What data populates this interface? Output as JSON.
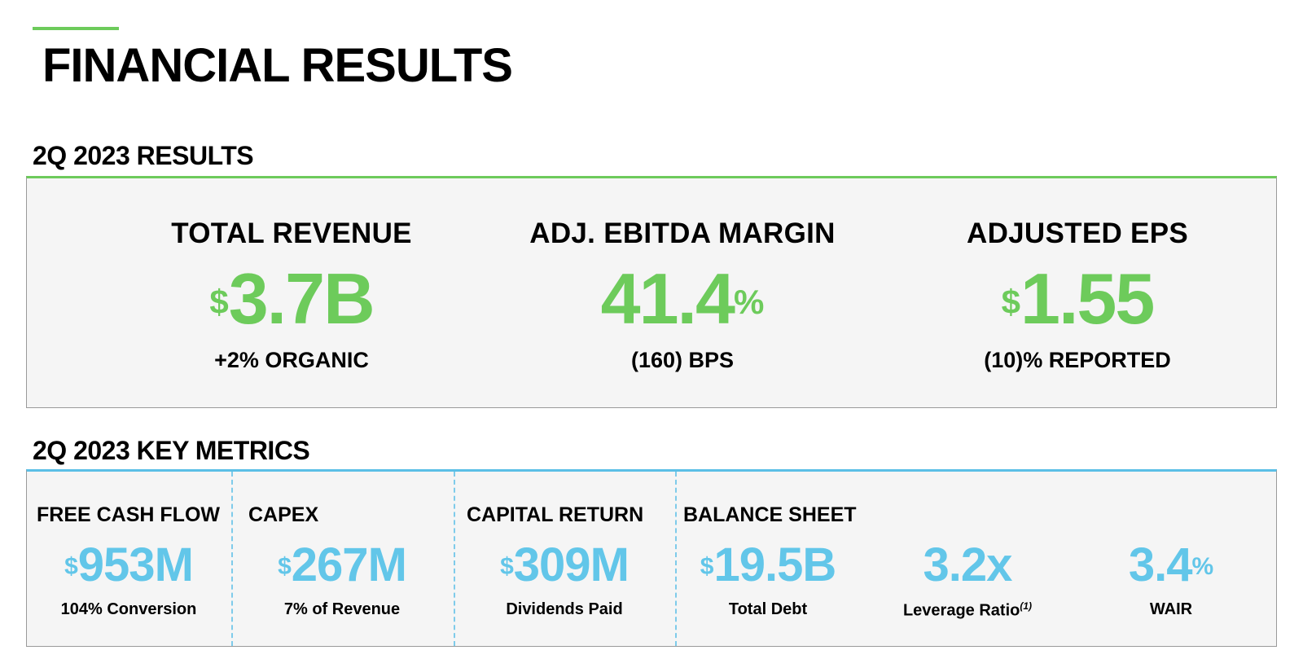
{
  "page_title": "FINANCIAL RESULTS",
  "accent_color": "#6dcb5b",
  "metrics_color": "#62c6e9",
  "results": {
    "title": "2Q 2023 RESULTS",
    "items": [
      {
        "label": "TOTAL REVENUE",
        "prefix": "$",
        "value": "3.7B",
        "suffix": "",
        "sub": "+2% ORGANIC"
      },
      {
        "label": "ADJ. EBITDA MARGIN",
        "prefix": "",
        "value": "41.4",
        "suffix": "%",
        "sub": "(160) BPS"
      },
      {
        "label": "ADJUSTED EPS",
        "prefix": "$",
        "value": "1.55",
        "suffix": "",
        "sub": "(10)% REPORTED"
      }
    ]
  },
  "metrics": {
    "title": "2Q 2023 KEY METRICS",
    "free_cash_flow": {
      "label": "FREE CASH FLOW",
      "prefix": "$",
      "value": "953M",
      "sub": "104% Conversion"
    },
    "capex": {
      "label": "CAPEX",
      "prefix": "$",
      "value": "267M",
      "sub": "7% of Revenue"
    },
    "capital_return": {
      "label": "CAPITAL RETURN",
      "prefix": "$",
      "value": "309M",
      "sub": "Dividends Paid"
    },
    "balance_sheet": {
      "label": "BALANCE SHEET",
      "total_debt": {
        "prefix": "$",
        "value": "19.5B",
        "sub": "Total Debt"
      },
      "leverage": {
        "value": "3.2x",
        "sub": "Leverage Ratio",
        "footnote": "(1)"
      },
      "wair": {
        "value": "3.4",
        "suffix": "%",
        "sub": "WAIR"
      }
    }
  }
}
